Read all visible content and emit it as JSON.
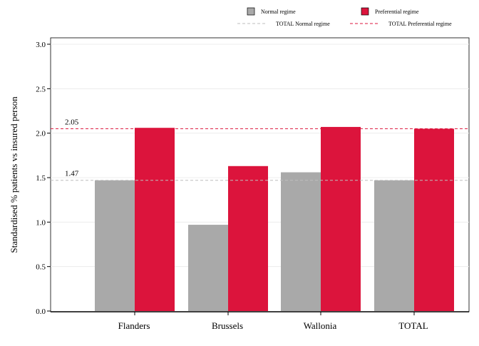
{
  "chart_data": {
    "type": "bar",
    "categories": [
      "Flanders",
      "Brussels",
      "Wallonia",
      "TOTAL"
    ],
    "series": [
      {
        "name": "Normal regime",
        "values": [
          1.47,
          0.97,
          1.56,
          1.47
        ],
        "color": "#a9a9a9"
      },
      {
        "name": "Preferential regime",
        "values": [
          2.06,
          1.63,
          2.07,
          2.05
        ],
        "color": "#dc143c"
      }
    ],
    "reference_lines": [
      {
        "name": "TOTAL Normal regime",
        "value": 1.47,
        "label": "1.47",
        "color": "#bdbdbd",
        "style": "dashed"
      },
      {
        "name": "TOTAL Preferential regime",
        "value": 2.05,
        "label": "2.05",
        "color": "#dc143c",
        "style": "dashed"
      }
    ],
    "title": "",
    "xlabel": "",
    "ylabel": "Standardised % patients vs insured person",
    "ylim": [
      0,
      3.0
    ],
    "yticks": [
      "0.0",
      "0.5",
      "1.0",
      "1.5",
      "2.0",
      "2.5",
      "3.0"
    ],
    "grid": true,
    "legend_position": "top-right"
  }
}
